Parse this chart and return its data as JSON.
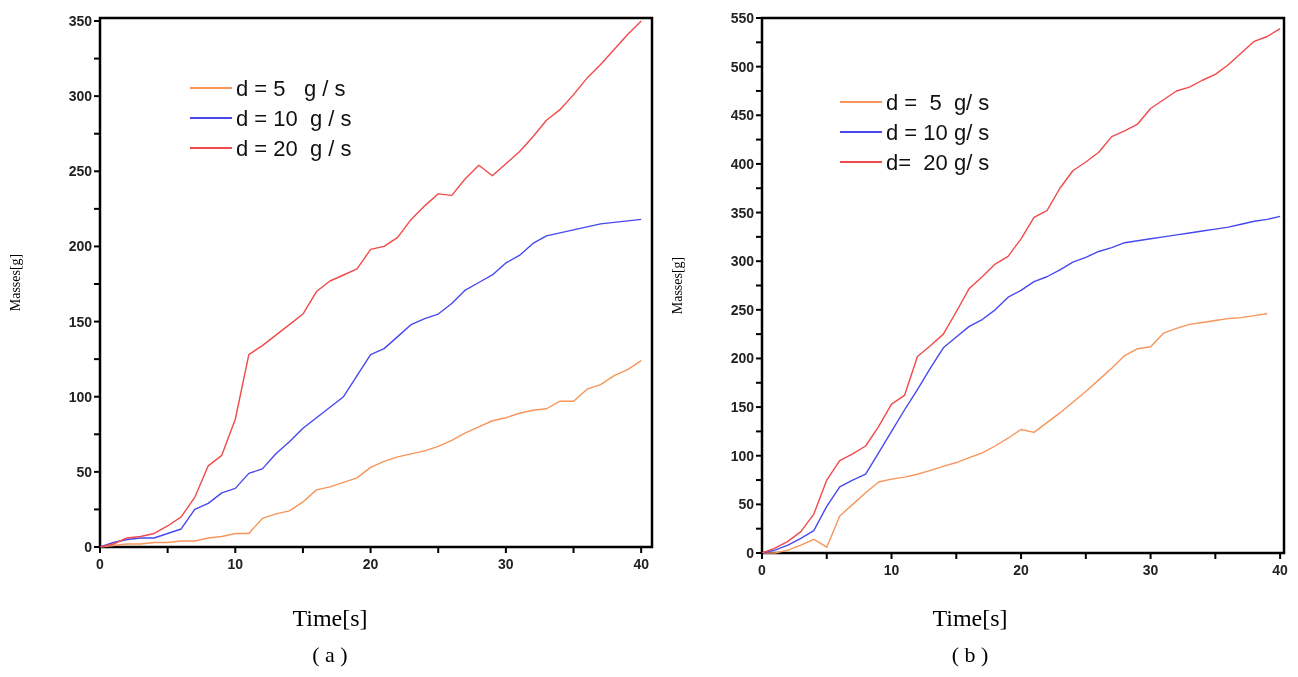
{
  "chart_data": [
    {
      "type": "line",
      "xlabel": "Time[s]",
      "ylabel": "Masses[g]",
      "annotations": [
        "( a )"
      ],
      "legend": "top left",
      "x": [
        0,
        1,
        2,
        3,
        4,
        5,
        6,
        7,
        8,
        9,
        10,
        11,
        12,
        13,
        14,
        15,
        16,
        17,
        18,
        19,
        20,
        21,
        22,
        23,
        24,
        25,
        26,
        27,
        28,
        29,
        30,
        31,
        32,
        33,
        34,
        35,
        36,
        37,
        38,
        39,
        40
      ],
      "xlim": [
        0,
        40.8
      ],
      "xticks": [
        0,
        {
          "value": 5,
          "label": null
        },
        10,
        {
          "value": 15,
          "label": null
        },
        20,
        {
          "value": 25,
          "label": null
        },
        30,
        {
          "value": 35,
          "label": null
        },
        40
      ],
      "ylim": [
        0,
        352
      ],
      "yticks": [
        0,
        {
          "value": 25,
          "label": null
        },
        50,
        {
          "value": 75,
          "label": null
        },
        100,
        {
          "value": 125,
          "label": null
        },
        150,
        {
          "value": 175,
          "label": null
        },
        200,
        {
          "value": 225,
          "label": null
        },
        250,
        {
          "value": 275,
          "label": null
        },
        300,
        {
          "value": 325,
          "label": null
        },
        350
      ],
      "series": [
        {
          "name": "d = 5   g / s",
          "color": "#f7955a",
          "values": [
            0,
            1,
            2,
            2,
            3,
            3,
            4,
            4,
            6,
            7,
            9,
            9,
            19,
            22,
            24,
            30,
            38,
            40,
            43,
            46,
            53,
            57,
            60,
            62,
            64,
            67,
            71,
            76,
            80,
            84,
            86,
            89,
            91,
            92,
            97,
            97,
            105,
            108,
            114,
            118,
            124
          ]
        },
        {
          "name": "d = 10  g / s",
          "color": "#4848f0",
          "values": [
            0,
            3,
            5,
            6,
            6,
            9,
            12,
            25,
            29,
            36,
            39,
            49,
            52,
            62,
            70,
            79,
            86,
            93,
            100,
            114,
            128,
            132,
            140,
            148,
            152,
            155,
            162,
            171,
            176,
            181,
            189,
            194,
            202,
            207,
            209,
            211,
            213,
            215,
            216,
            217,
            218
          ]
        },
        {
          "name": "d = 20  g / s",
          "color": "#f04a4a",
          "values": [
            0,
            2,
            6,
            7,
            9,
            14,
            20,
            33,
            54,
            61,
            85,
            128,
            134,
            141,
            148,
            155,
            170,
            177,
            181,
            185,
            198,
            200,
            206,
            218,
            227,
            235,
            234,
            245,
            254,
            247,
            255,
            263,
            273,
            284,
            291,
            301,
            312,
            321,
            331,
            341,
            350
          ]
        }
      ]
    },
    {
      "type": "line",
      "xlabel": "Time[s]",
      "ylabel": "Masses[g]",
      "annotations": [
        "( b )"
      ],
      "legend": "top left",
      "x": [
        0,
        1,
        2,
        3,
        4,
        5,
        6,
        7,
        8,
        9,
        10,
        11,
        12,
        13,
        14,
        15,
        16,
        17,
        18,
        19,
        20,
        21,
        22,
        23,
        24,
        25,
        26,
        27,
        28,
        29,
        30,
        31,
        32,
        33,
        34,
        35,
        36,
        37,
        38,
        39,
        40
      ],
      "xlim": [
        0,
        40.3
      ],
      "xticks": [
        0,
        {
          "value": 5,
          "label": null
        },
        10,
        {
          "value": 15,
          "label": null
        },
        20,
        {
          "value": 25,
          "label": null
        },
        30,
        {
          "value": 35,
          "label": null
        },
        40
      ],
      "ylim": [
        0,
        550
      ],
      "yticks": [
        0,
        {
          "value": 25,
          "label": null
        },
        50,
        {
          "value": 75,
          "label": null
        },
        100,
        {
          "value": 125,
          "label": null
        },
        150,
        {
          "value": 175,
          "label": null
        },
        200,
        {
          "value": 225,
          "label": null
        },
        250,
        {
          "value": 275,
          "label": null
        },
        300,
        {
          "value": 325,
          "label": null
        },
        350,
        {
          "value": 375,
          "label": null
        },
        400,
        {
          "value": 425,
          "label": null
        },
        450,
        {
          "value": 475,
          "label": null
        },
        500,
        {
          "value": 525,
          "label": null
        },
        550
      ],
      "series": [
        {
          "name": "d =  5  g/ s",
          "color": "#f7955a",
          "values": [
            0,
            0,
            3,
            8,
            14,
            6,
            38,
            50,
            62,
            73,
            76,
            78,
            81,
            85,
            89,
            93,
            98,
            103,
            110,
            118,
            127,
            124,
            134,
            144,
            155,
            166,
            178,
            190,
            203,
            210,
            212,
            226,
            231,
            235,
            237,
            239,
            241,
            242,
            244,
            246,
            null
          ]
        },
        {
          "name": "d = 10 g/ s",
          "color": "#4848f0",
          "values": [
            0,
            3,
            8,
            15,
            23,
            48,
            68,
            75,
            81,
            103,
            125,
            147,
            168,
            190,
            211,
            222,
            233,
            240,
            250,
            263,
            270,
            279,
            284,
            291,
            299,
            304,
            310,
            314,
            319,
            321,
            323,
            325,
            327,
            329,
            331,
            333,
            335,
            338,
            341,
            343,
            346
          ]
        },
        {
          "name": "d=  20 g/ s",
          "color": "#f04a4a",
          "values": [
            0,
            5,
            12,
            22,
            40,
            75,
            95,
            102,
            110,
            130,
            153,
            162,
            202,
            213,
            225,
            248,
            272,
            284,
            297,
            305,
            323,
            345,
            352,
            375,
            393,
            402,
            412,
            428,
            434,
            441,
            457,
            466,
            475,
            479,
            486,
            492,
            502,
            514,
            526,
            531,
            539
          ]
        }
      ]
    }
  ]
}
